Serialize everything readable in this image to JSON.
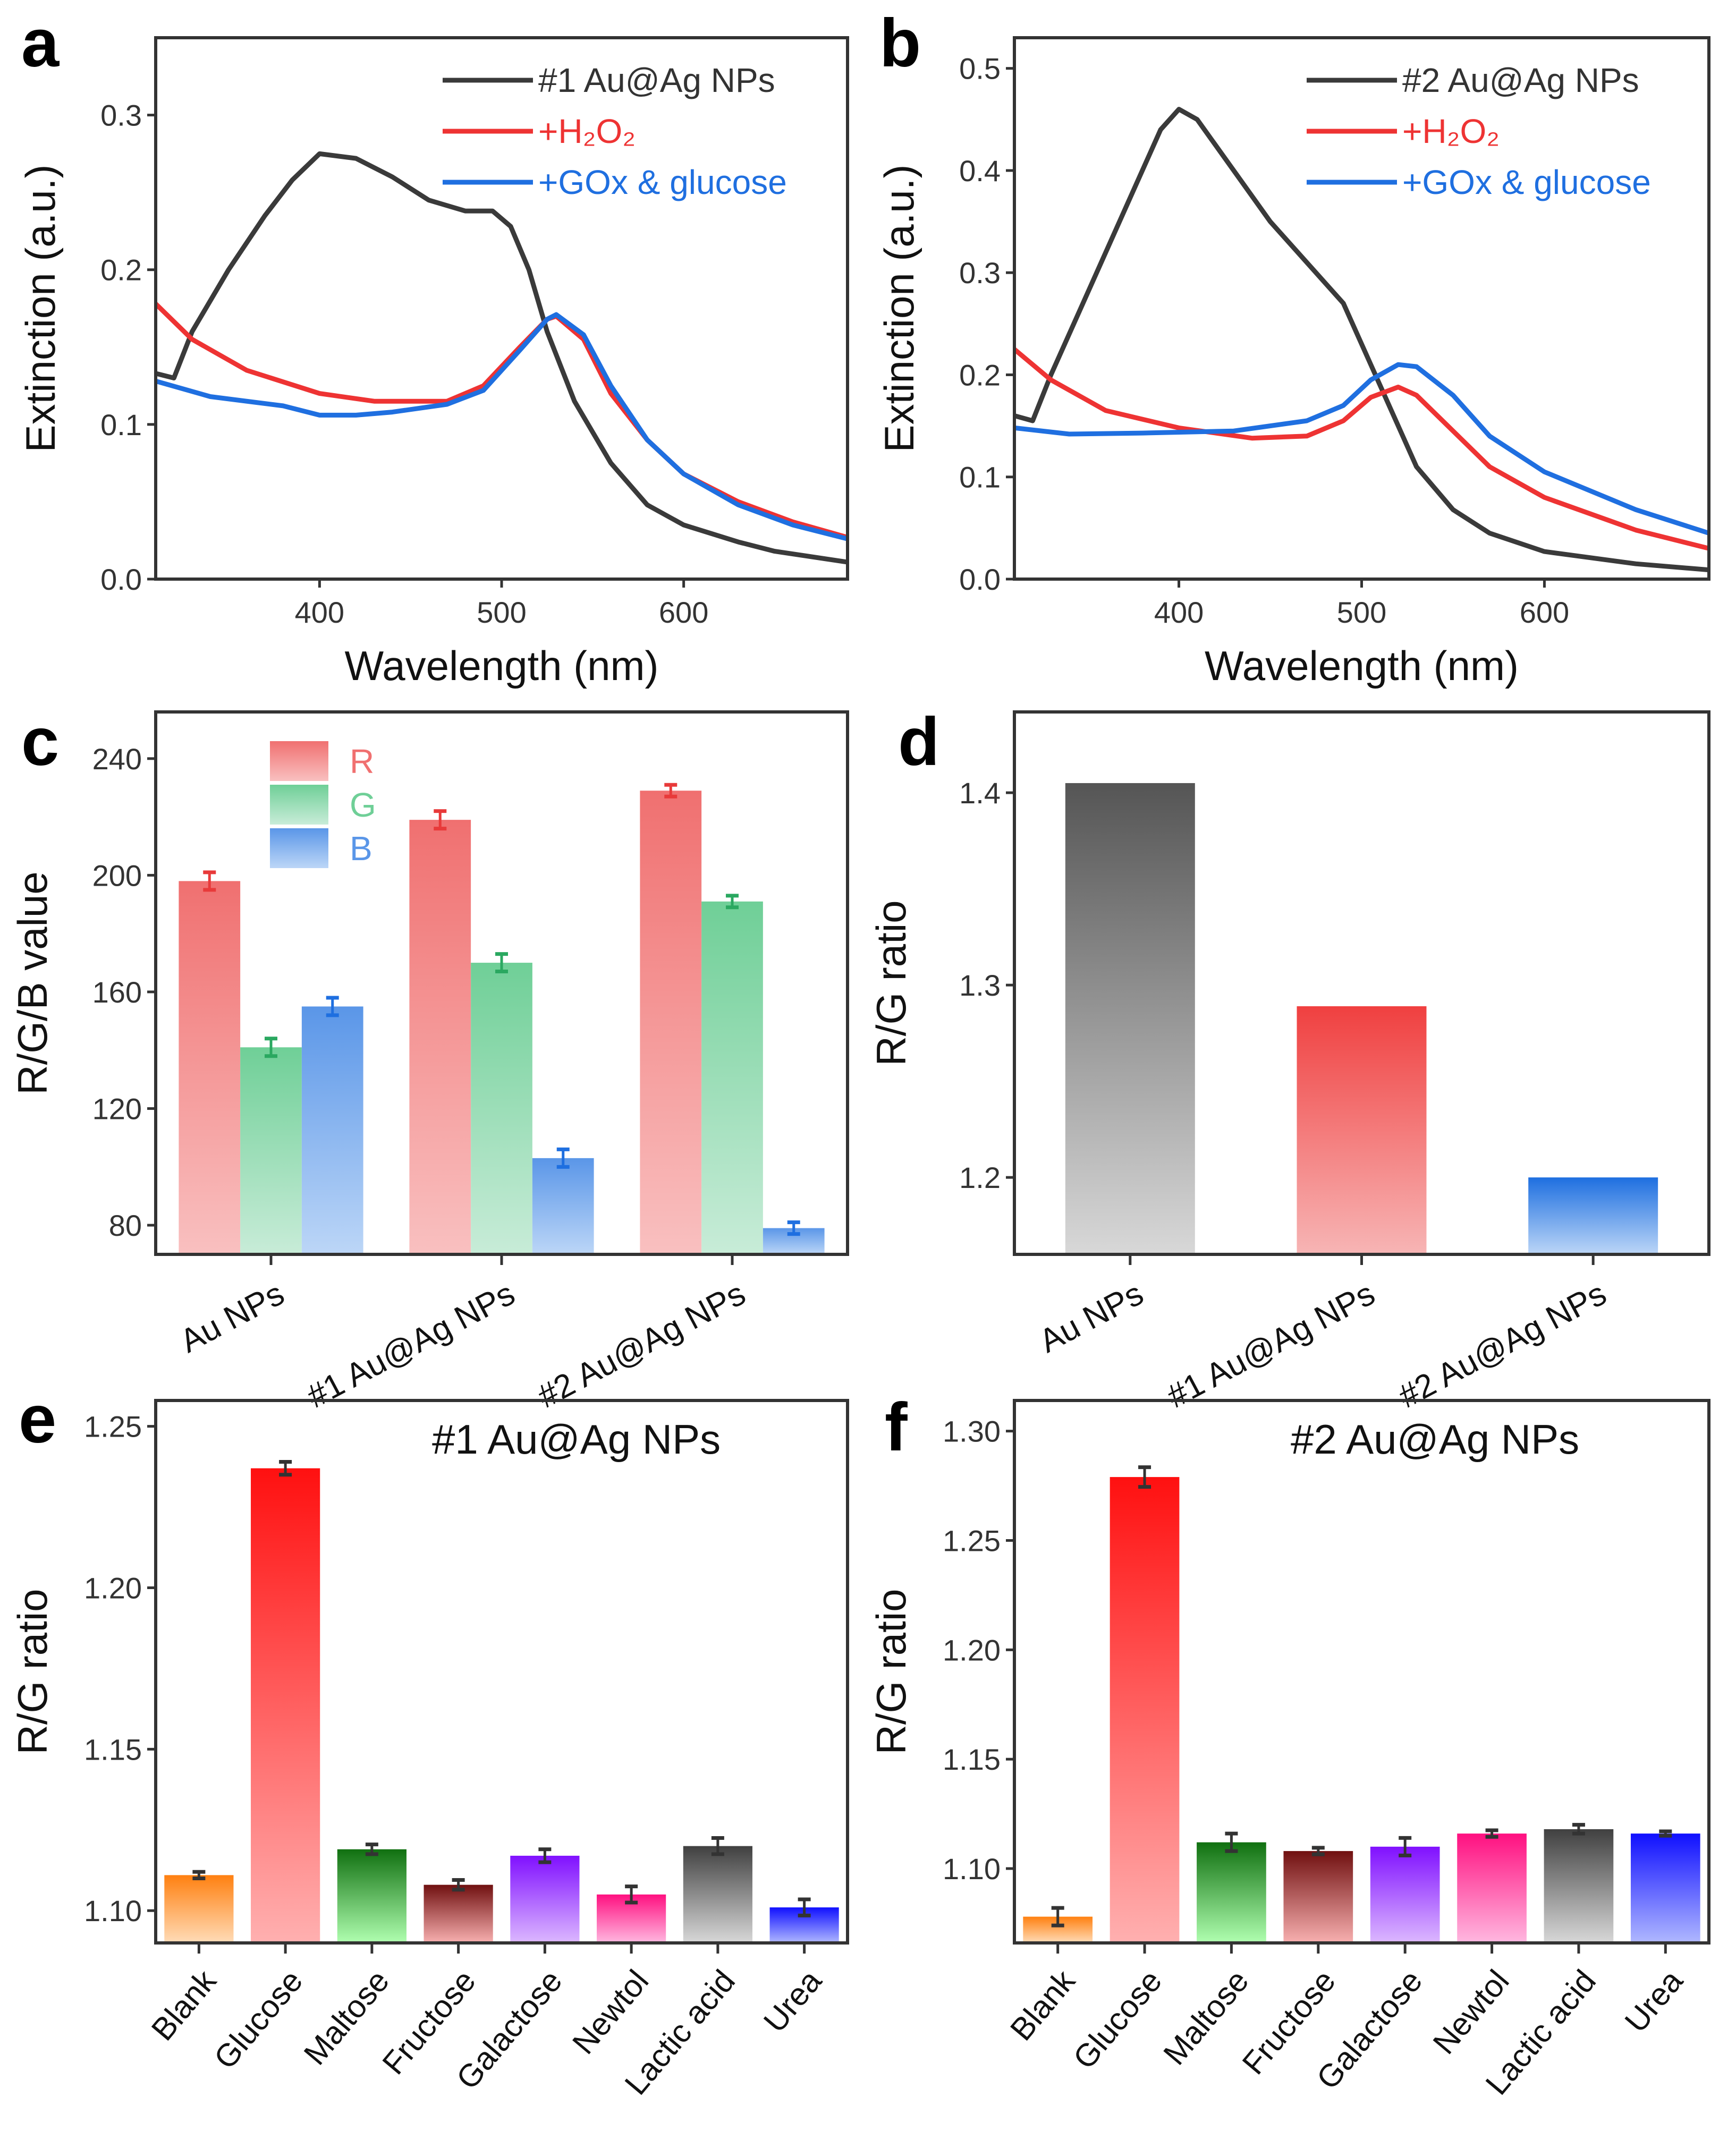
{
  "chart_data": [
    {
      "panel": "a",
      "type": "line",
      "xlabel": "Wavelength (nm)",
      "ylabel": "Extinction (a.u.)",
      "xlim": [
        310,
        690
      ],
      "ylim": [
        0,
        0.35
      ],
      "xticks": [
        400,
        500,
        600
      ],
      "yticks": [
        0.0,
        0.1,
        0.2,
        0.3
      ],
      "yticklabels": [
        "0.0",
        "0.1",
        "0.2",
        "0.3"
      ],
      "legend": "top-right",
      "grid": false,
      "series": [
        {
          "name": "#1 Au@Ag NPs",
          "color": "#3a3a3a",
          "x": [
            310,
            320,
            330,
            350,
            370,
            385,
            400,
            420,
            440,
            460,
            480,
            495,
            505,
            515,
            525,
            540,
            560,
            580,
            600,
            630,
            650,
            690
          ],
          "y": [
            0.133,
            0.13,
            0.16,
            0.2,
            0.235,
            0.258,
            0.275,
            0.272,
            0.26,
            0.245,
            0.238,
            0.238,
            0.228,
            0.2,
            0.16,
            0.115,
            0.075,
            0.048,
            0.035,
            0.024,
            0.018,
            0.011
          ]
        },
        {
          "name": "+H₂O₂",
          "color": "#ee3333",
          "x": [
            310,
            330,
            360,
            400,
            430,
            470,
            490,
            510,
            525,
            530,
            545,
            560,
            580,
            600,
            630,
            660,
            690
          ],
          "y": [
            0.178,
            0.155,
            0.135,
            0.12,
            0.115,
            0.115,
            0.125,
            0.15,
            0.168,
            0.17,
            0.155,
            0.12,
            0.09,
            0.068,
            0.05,
            0.037,
            0.027
          ]
        },
        {
          "name": "+GOx & glucose",
          "color": "#1f6fe0",
          "x": [
            310,
            340,
            380,
            400,
            420,
            440,
            470,
            490,
            510,
            525,
            530,
            545,
            560,
            580,
            600,
            630,
            660,
            690
          ],
          "y": [
            0.128,
            0.118,
            0.112,
            0.106,
            0.106,
            0.108,
            0.113,
            0.122,
            0.148,
            0.168,
            0.171,
            0.158,
            0.125,
            0.09,
            0.068,
            0.048,
            0.035,
            0.026
          ]
        }
      ]
    },
    {
      "panel": "b",
      "type": "line",
      "xlabel": "Wavelength (nm)",
      "ylabel": "Extinction (a.u.)",
      "xlim": [
        310,
        690
      ],
      "ylim": [
        0,
        0.53
      ],
      "xticks": [
        400,
        500,
        600
      ],
      "yticks": [
        0.0,
        0.1,
        0.2,
        0.3,
        0.4,
        0.5
      ],
      "yticklabels": [
        "0.0",
        "0.1",
        "0.2",
        "0.3",
        "0.4",
        "0.5"
      ],
      "legend": "top-right",
      "grid": false,
      "series": [
        {
          "name": "#2 Au@Ag NPs",
          "color": "#3a3a3a",
          "x": [
            310,
            320,
            330,
            350,
            370,
            390,
            400,
            410,
            430,
            450,
            470,
            490,
            505,
            520,
            530,
            550,
            570,
            600,
            650,
            690
          ],
          "y": [
            0.16,
            0.155,
            0.2,
            0.28,
            0.36,
            0.44,
            0.46,
            0.45,
            0.4,
            0.35,
            0.31,
            0.27,
            0.21,
            0.15,
            0.11,
            0.068,
            0.045,
            0.027,
            0.015,
            0.009
          ]
        },
        {
          "name": "+H₂O₂",
          "color": "#ee3333",
          "x": [
            310,
            330,
            360,
            400,
            440,
            470,
            490,
            505,
            520,
            530,
            550,
            570,
            600,
            650,
            690
          ],
          "y": [
            0.225,
            0.195,
            0.165,
            0.148,
            0.138,
            0.14,
            0.155,
            0.178,
            0.188,
            0.18,
            0.145,
            0.11,
            0.08,
            0.048,
            0.03
          ]
        },
        {
          "name": "+GOx & glucose",
          "color": "#1f6fe0",
          "x": [
            310,
            340,
            380,
            430,
            470,
            490,
            505,
            520,
            530,
            550,
            570,
            600,
            650,
            690
          ],
          "y": [
            0.148,
            0.142,
            0.143,
            0.145,
            0.155,
            0.17,
            0.195,
            0.21,
            0.208,
            0.18,
            0.14,
            0.105,
            0.068,
            0.045
          ]
        }
      ]
    },
    {
      "panel": "c",
      "type": "bar",
      "xlabel": "",
      "ylabel": "R/G/B value",
      "ylim": [
        70,
        256
      ],
      "yticks": [
        80,
        120,
        160,
        200,
        240
      ],
      "yticklabels": [
        "80",
        "120",
        "160",
        "200",
        "240"
      ],
      "legend": "top-left",
      "categories": [
        "Au NPs",
        "#1 Au@Ag NPs",
        "#2 Au@Ag NPs"
      ],
      "series": [
        {
          "name": "R",
          "values": [
            198,
            219,
            229
          ],
          "errors": [
            3,
            3,
            2
          ],
          "color_top": "#f07070",
          "color_bottom": "#f9c0c0",
          "err_color": "#e83a3a",
          "label_color": "#f07070"
        },
        {
          "name": "G",
          "values": [
            141,
            170,
            191
          ],
          "errors": [
            3,
            3,
            2
          ],
          "color_top": "#6fcf97",
          "color_bottom": "#c8ecd8",
          "err_color": "#2aa860",
          "label_color": "#6fcf97"
        },
        {
          "name": "B",
          "values": [
            155,
            103,
            79
          ],
          "errors": [
            3,
            3,
            2
          ],
          "color_top": "#5a96e8",
          "color_bottom": "#bcd6f7",
          "err_color": "#1e6fe0",
          "label_color": "#5a96e8"
        }
      ]
    },
    {
      "panel": "d",
      "type": "bar",
      "xlabel": "",
      "ylabel": "R/G ratio",
      "ylim": [
        1.16,
        1.442
      ],
      "yticks": [
        1.2,
        1.3,
        1.4
      ],
      "yticklabels": [
        "1.2",
        "1.3",
        "1.4"
      ],
      "categories": [
        "Au NPs",
        "#1 Au@Ag NPs",
        "#2 Au@Ag NPs"
      ],
      "values": [
        1.405,
        1.289,
        1.2
      ],
      "colors_top": [
        "#555555",
        "#f04040",
        "#1e6fe0"
      ],
      "colors_bottom": [
        "#d8d8d8",
        "#f7b5b5",
        "#bcd6f7"
      ]
    },
    {
      "panel": "e",
      "type": "bar",
      "title": "#1 Au@Ag NPs",
      "xlabel": "",
      "ylabel": "R/G ratio",
      "ylim": [
        1.09,
        1.258
      ],
      "yticks": [
        1.1,
        1.15,
        1.2,
        1.25
      ],
      "yticklabels": [
        "1.10",
        "1.15",
        "1.20",
        "1.25"
      ],
      "categories": [
        "Blank",
        "Glucose",
        "Maltose",
        "Fructose",
        "Galactose",
        "Newtol",
        "Lactic acid",
        "Urea"
      ],
      "values": [
        1.111,
        1.237,
        1.119,
        1.108,
        1.117,
        1.105,
        1.12,
        1.101
      ],
      "errors": [
        0.001,
        0.002,
        0.0015,
        0.0015,
        0.002,
        0.0025,
        0.0025,
        0.0025
      ],
      "colors_top": [
        "#ff8010",
        "#ff1010",
        "#107010",
        "#701010",
        "#8010ff",
        "#ff1080",
        "#404040",
        "#1010ff"
      ],
      "colors_bottom": [
        "#ffdcb8",
        "#ffb0b0",
        "#b0ffb0",
        "#f8b0b0",
        "#dcb8ff",
        "#ffb8e0",
        "#d8d8d8",
        "#b0b8ff"
      ]
    },
    {
      "panel": "f",
      "type": "bar",
      "title": "#2 Au@Ag NPs",
      "xlabel": "",
      "ylabel": "R/G ratio",
      "ylim": [
        1.066,
        1.314
      ],
      "yticks": [
        1.1,
        1.15,
        1.2,
        1.25,
        1.3
      ],
      "yticklabels": [
        "1.10",
        "1.15",
        "1.20",
        "1.25",
        "1.30"
      ],
      "categories": [
        "Blank",
        "Glucose",
        "Maltose",
        "Fructose",
        "Galactose",
        "Newtol",
        "Lactic acid",
        "Urea"
      ],
      "values": [
        1.078,
        1.279,
        1.112,
        1.108,
        1.11,
        1.116,
        1.118,
        1.116
      ],
      "errors": [
        0.004,
        0.0045,
        0.004,
        0.0015,
        0.004,
        0.0015,
        0.002,
        0.001
      ],
      "colors_top": [
        "#ff8010",
        "#ff1010",
        "#107010",
        "#701010",
        "#8010ff",
        "#ff1080",
        "#404040",
        "#1010ff"
      ],
      "colors_bottom": [
        "#ffdcb8",
        "#ffb0b0",
        "#b0ffb0",
        "#f8b0b0",
        "#dcb8ff",
        "#ffb8e0",
        "#d8d8d8",
        "#b0b8ff"
      ]
    }
  ]
}
